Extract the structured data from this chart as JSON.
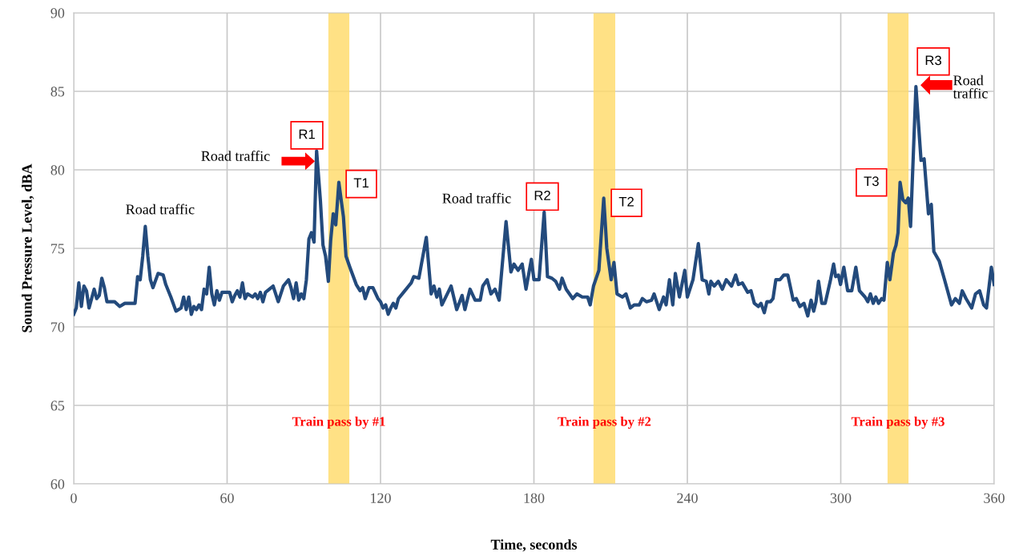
{
  "chart_data": {
    "type": "line",
    "xlabel": "Time, seconds",
    "ylabel": "Sound Pressure Level, dBA",
    "xlim": [
      0,
      360
    ],
    "xticks": [
      0,
      60,
      120,
      180,
      240,
      300,
      360
    ],
    "ylim": [
      60,
      90
    ],
    "yticks": [
      60,
      65,
      70,
      75,
      80,
      85,
      90
    ],
    "grid": true,
    "legend": false,
    "marker": "none",
    "line_style": "solid",
    "series": [
      {
        "color": "#234a7c",
        "x": [
          0,
          1,
          2,
          3,
          4,
          5,
          6,
          8,
          9,
          10,
          11,
          12,
          13,
          16,
          18,
          20,
          24,
          25,
          26,
          27,
          28,
          29,
          30,
          31,
          33,
          35,
          36,
          38,
          40,
          42,
          43,
          44,
          45,
          46,
          47,
          48,
          49,
          50,
          51,
          52,
          53,
          54,
          55,
          56,
          57,
          58,
          61,
          62,
          63,
          64,
          65,
          66,
          67,
          68,
          70,
          71,
          72,
          73,
          74,
          75,
          78,
          80,
          82,
          84,
          85,
          86,
          87,
          88,
          89,
          90,
          91,
          92,
          93,
          94,
          95,
          96.5,
          97.5,
          98.5,
          99.6,
          100.5,
          101.5,
          102.5,
          103.7,
          105.5,
          106.5,
          108,
          110.5,
          112,
          113,
          114,
          115.5,
          117,
          119,
          120,
          121,
          122,
          123,
          124,
          125,
          126,
          127,
          129,
          131,
          132,
          133,
          135,
          137.9,
          139.8,
          140.9,
          142,
          143,
          144,
          147.6,
          149.8,
          151.9,
          153,
          155,
          157,
          159,
          160,
          161.7,
          163.2,
          164.8,
          166.4,
          169.1,
          171,
          172.2,
          173.8,
          175.4,
          176.9,
          179,
          180,
          182,
          184,
          185.3,
          187,
          188.5,
          190,
          191,
          192.6,
          195.2,
          196.8,
          198.9,
          201,
          202,
          203.3,
          205.4,
          207.3,
          208.5,
          210.2,
          211.3,
          212.5,
          214.6,
          216,
          217.7,
          219.2,
          221.2,
          222.4,
          224,
          226,
          227,
          229,
          230.7,
          231.7,
          233,
          234.3,
          235.3,
          236.9,
          239,
          240,
          242.2,
          244.3,
          245.8,
          247.4,
          248.4,
          249.2,
          250.5,
          252.1,
          253.7,
          255.2,
          257.3,
          258.9,
          260,
          261.5,
          263.6,
          264.9,
          266.2,
          267.8,
          268.8,
          270.1,
          271.1,
          272.5,
          273.5,
          274.6,
          276.2,
          277.7,
          279.3,
          281.4,
          282.6,
          284,
          285.6,
          287.1,
          288.4,
          289.4,
          290.3,
          291.3,
          292.6,
          293.9,
          296,
          297.2,
          298,
          299.1,
          299.9,
          301.2,
          302.7,
          304.3,
          305.9,
          307.3,
          309.5,
          310.6,
          311.6,
          312.7,
          313.7,
          314.8,
          316,
          316.9,
          318.2,
          319.2,
          320.6,
          321.6,
          322.4,
          323.2,
          324.3,
          325.4,
          326.4,
          327.3,
          329.4,
          331.4,
          332.6,
          334.3,
          335.4,
          336.4,
          338.5,
          340.6,
          343.3,
          344.8,
          346.4,
          347.5,
          349,
          351.2,
          352.7,
          354.3,
          355.9,
          357,
          358.9,
          360
        ],
        "values": [
          70.8,
          71.2,
          72.8,
          71.3,
          72.6,
          72.3,
          71.2,
          72.4,
          71.8,
          72.0,
          73.1,
          72.5,
          71.6,
          71.6,
          71.3,
          71.5,
          71.5,
          73.2,
          73.0,
          74.5,
          76.4,
          74.5,
          73.0,
          72.5,
          73.4,
          73.3,
          72.7,
          71.9,
          71.0,
          71.2,
          71.9,
          71.1,
          71.9,
          70.8,
          71.3,
          71.1,
          71.4,
          71.1,
          72.4,
          72.1,
          73.8,
          72.1,
          71.4,
          72.3,
          71.7,
          72.2,
          72.2,
          71.6,
          72.0,
          72.3,
          71.9,
          72.8,
          71.8,
          72.1,
          71.9,
          72.1,
          71.8,
          72.2,
          71.6,
          72.2,
          72.6,
          71.6,
          72.6,
          73.0,
          72.5,
          71.8,
          72.8,
          71.7,
          72.1,
          71.8,
          73.0,
          75.6,
          76.0,
          75.4,
          81.2,
          78.0,
          75.2,
          74.5,
          72.9,
          75.5,
          77.2,
          76.5,
          79.2,
          77.0,
          74.5,
          73.8,
          72.7,
          72.3,
          72.5,
          71.8,
          72.5,
          72.5,
          71.8,
          71.6,
          71.2,
          71.4,
          70.8,
          71.2,
          71.5,
          71.2,
          71.8,
          72.2,
          72.6,
          72.8,
          73.2,
          73.1,
          75.7,
          72.1,
          72.6,
          71.9,
          72.4,
          71.4,
          72.6,
          71.1,
          72.0,
          71.1,
          72.4,
          71.7,
          71.7,
          72.6,
          73.0,
          72.1,
          72.4,
          71.7,
          76.7,
          73.5,
          74.0,
          73.6,
          74.0,
          72.4,
          74.3,
          73.0,
          73.0,
          77.3,
          73.2,
          73.1,
          72.9,
          72.4,
          73.1,
          72.4,
          71.8,
          72.1,
          71.9,
          71.9,
          71.4,
          72.6,
          73.6,
          78.2,
          75.0,
          73.0,
          74.1,
          72.1,
          71.9,
          72.1,
          71.2,
          71.4,
          71.4,
          71.8,
          71.6,
          71.7,
          72.1,
          71.1,
          71.9,
          71.4,
          73.0,
          71.4,
          73.4,
          71.9,
          73.6,
          71.9,
          73.0,
          75.3,
          73.0,
          72.9,
          72.1,
          72.9,
          72.6,
          72.9,
          72.4,
          73.0,
          72.6,
          73.3,
          72.7,
          72.8,
          72.2,
          72.3,
          71.5,
          71.3,
          71.5,
          70.9,
          71.6,
          71.6,
          71.8,
          73.0,
          73.0,
          73.3,
          73.3,
          71.7,
          71.8,
          71.3,
          71.5,
          70.7,
          71.7,
          71.0,
          71.6,
          72.9,
          71.5,
          71.5,
          73.0,
          74.0,
          73.2,
          73.3,
          72.7,
          73.8,
          72.3,
          72.3,
          73.8,
          72.3,
          71.9,
          71.6,
          72.1,
          71.5,
          71.9,
          71.5,
          71.8,
          71.7,
          74.1,
          73.0,
          74.7,
          75.2,
          76.0,
          79.2,
          78.1,
          77.9,
          78.2,
          76.4,
          85.3,
          80.6,
          80.7,
          77.2,
          77.8,
          74.8,
          74.2,
          73.0,
          71.4,
          71.8,
          71.5,
          72.3,
          71.8,
          71.2,
          72.1,
          72.3,
          71.4,
          71.2,
          73.8,
          72.7
        ]
      }
    ],
    "bands": [
      {
        "axis": "x",
        "from": 99.6,
        "to": 107.8,
        "label": "Train pass by #1",
        "color": "#ffd966"
      },
      {
        "axis": "x",
        "from": 203.3,
        "to": 211.8,
        "label": "Train pass by #2",
        "color": "#ffd966"
      },
      {
        "axis": "x",
        "from": 318.3,
        "to": 326.5,
        "label": "Train pass by #3",
        "color": "#ffd966"
      }
    ],
    "annotations": [
      {
        "text": "Road traffic",
        "x": 28,
        "y": 76.4
      },
      {
        "text": "R1",
        "x": 95,
        "y": 81.2
      },
      "Road traffic",
      {
        "text": "T1",
        "x": 103.7,
        "y": 79.2
      },
      {
        "text": "Road traffic",
        "x": 169.1,
        "y": 76.7
      },
      {
        "text": "R2",
        "x": 184,
        "y": 77.3
      },
      {
        "text": "T2",
        "x": 207.3,
        "y": 78.2
      },
      {
        "text": "T3",
        "x": 323.2,
        "y": 79.2
      },
      {
        "text": "R3",
        "x": 329.4,
        "y": 85.3
      },
      {
        "text": "Road\ntraffic",
        "x": 329.4,
        "y": 85.3
      }
    ]
  }
}
